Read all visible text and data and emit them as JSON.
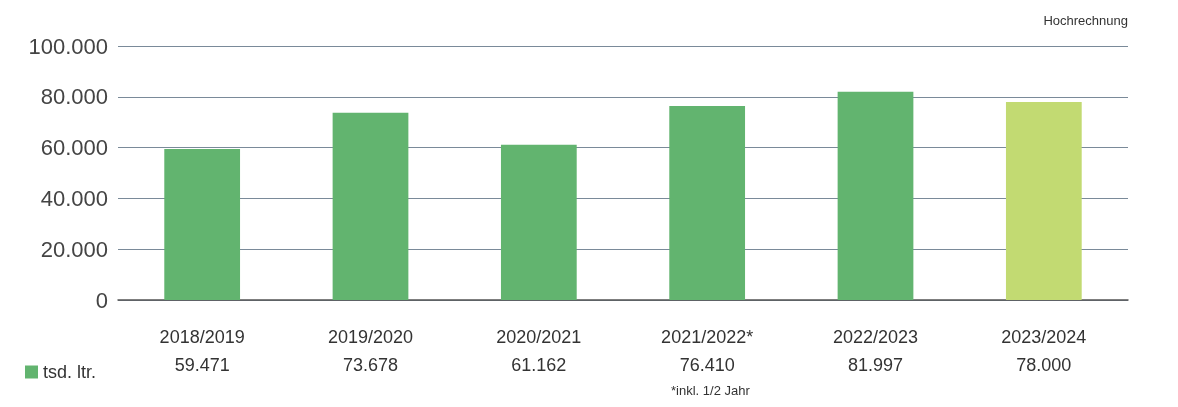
{
  "chart_data": {
    "type": "bar",
    "categories": [
      "2018/2019",
      "2019/2020",
      "2020/2021",
      "2021/2022*",
      "2022/2023",
      "2023/2024"
    ],
    "series": [
      {
        "name": "tsd. ltr.",
        "color": "#62b46f",
        "colors": [
          "#62b46f",
          "#62b46f",
          "#62b46f",
          "#62b46f",
          "#62b46f",
          "#c2da72"
        ],
        "values": [
          59471,
          73678,
          61162,
          76410,
          81997,
          78000
        ],
        "value_labels": [
          "59.471",
          "73.678",
          "61.162",
          "76.410",
          "81.997",
          "78.000"
        ]
      }
    ],
    "ylim": [
      0,
      100000
    ],
    "yticks": [
      {
        "value": 0,
        "label": "0"
      },
      {
        "value": 20000,
        "label": "20.000"
      },
      {
        "value": 40000,
        "label": "40.000"
      },
      {
        "value": 60000,
        "label": "60.000"
      },
      {
        "value": 80000,
        "label": "80.000"
      },
      {
        "value": 100000,
        "label": "100.000"
      }
    ],
    "grid": "y",
    "legend": "bottom left",
    "annotations": [
      "Hochrechnung",
      "*inkl. 1/2 Jahr"
    ]
  }
}
